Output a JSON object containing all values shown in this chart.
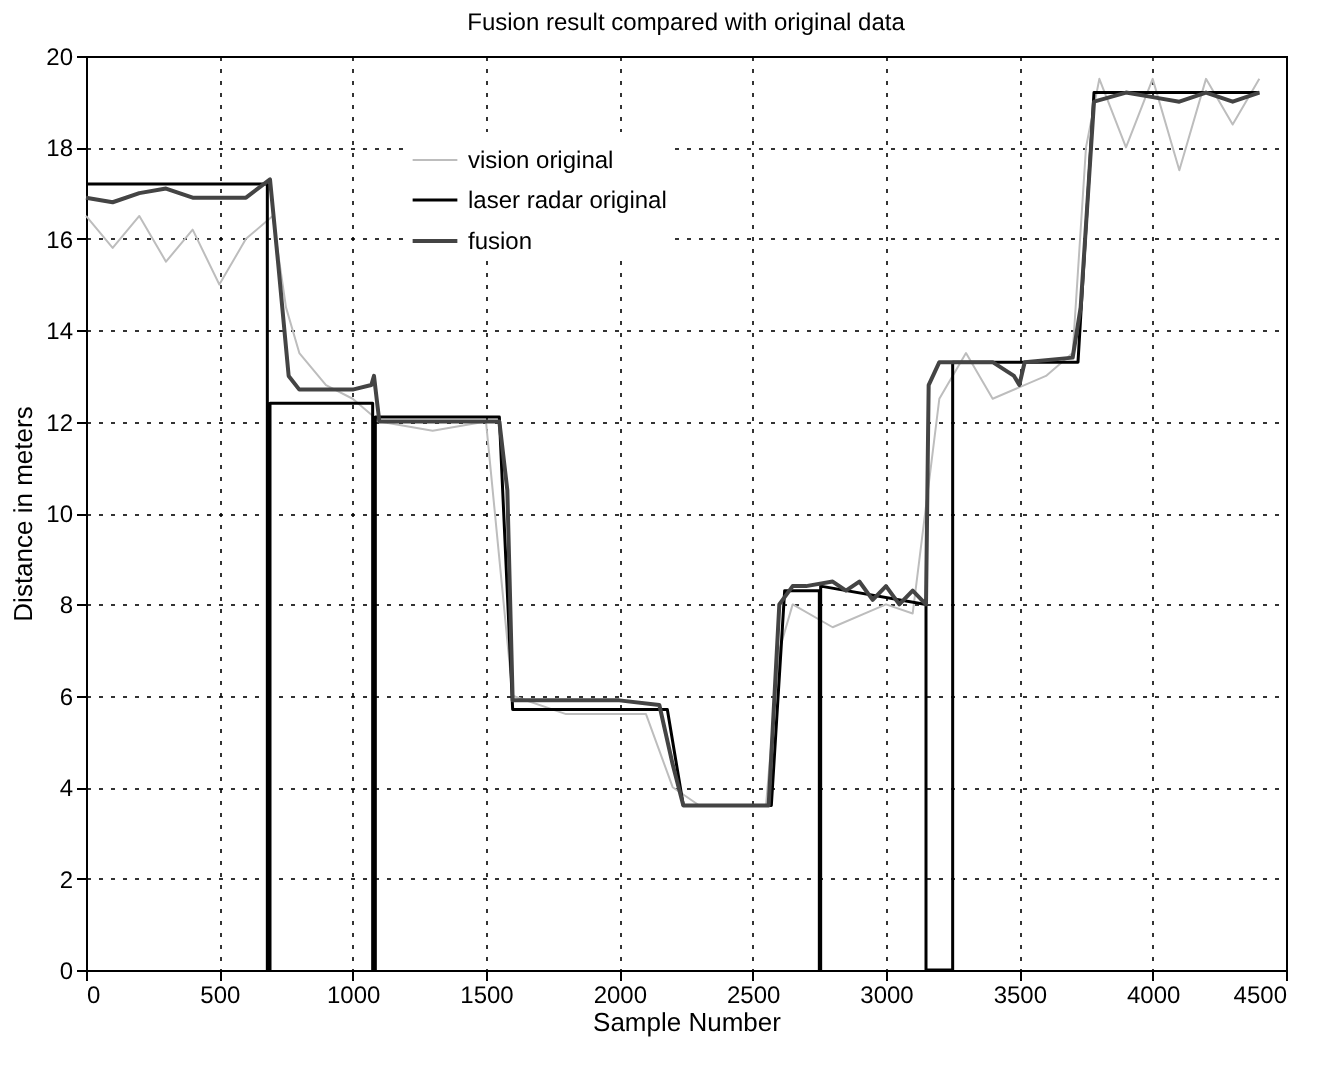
{
  "chart_data": {
    "type": "line",
    "title": "Fusion result compared with original data",
    "xlabel": "Sample Number",
    "ylabel": "Distance in meters",
    "xlim": [
      0,
      4500
    ],
    "xticks": [
      0,
      500,
      1000,
      1500,
      2000,
      2500,
      3000,
      3500,
      4000,
      4500
    ],
    "ylim": [
      0,
      20
    ],
    "yticks": [
      0,
      2,
      4,
      6,
      8,
      10,
      12,
      14,
      16,
      18,
      20
    ],
    "grid": true,
    "legend": "top",
    "line_style": "solid",
    "marker": "none",
    "series": [
      {
        "name": "vision original",
        "color": "#bdbdbd",
        "x": [
          0,
          100,
          200,
          300,
          400,
          500,
          600,
          700,
          750,
          800,
          900,
          1000,
          1100,
          1300,
          1500,
          1600,
          1800,
          2100,
          2200,
          2300,
          2550,
          2600,
          2650,
          2800,
          3000,
          3100,
          3200,
          3300,
          3400,
          3600,
          3700,
          3750,
          3800,
          3900,
          4000,
          4100,
          4200,
          4300,
          4400
        ],
        "values": [
          16.5,
          15.8,
          16.5,
          15.5,
          16.2,
          15.0,
          16.0,
          16.5,
          14.5,
          13.5,
          12.8,
          12.5,
          12.0,
          11.8,
          12.0,
          6.0,
          5.6,
          5.6,
          4.0,
          3.6,
          3.6,
          7.0,
          8.0,
          7.5,
          8.0,
          7.8,
          12.5,
          13.5,
          12.5,
          13.0,
          13.5,
          18.0,
          19.5,
          18.0,
          19.5,
          17.5,
          19.5,
          18.5,
          19.5
        ]
      },
      {
        "name": "laser radar original",
        "color": "#000000",
        "x": [
          0,
          680,
          680,
          690,
          690,
          1075,
          1075,
          1085,
          1085,
          1550,
          1600,
          2180,
          2240,
          2570,
          2620,
          2750,
          2750,
          2755,
          2755,
          3150,
          3150,
          3250,
          3250,
          3720,
          3780,
          4400
        ],
        "values": [
          17.2,
          17.2,
          0,
          0,
          12.4,
          12.4,
          0,
          0,
          12.1,
          12.1,
          5.7,
          5.7,
          3.6,
          3.6,
          8.3,
          8.3,
          0,
          0,
          8.4,
          8.0,
          0,
          0,
          13.3,
          13.3,
          19.2,
          19.2
        ]
      },
      {
        "name": "fusion",
        "color": "#444444",
        "x": [
          0,
          100,
          200,
          300,
          400,
          500,
          600,
          690,
          720,
          760,
          800,
          900,
          1000,
          1070,
          1080,
          1100,
          1200,
          1300,
          1400,
          1550,
          1580,
          1600,
          1800,
          2000,
          2150,
          2200,
          2240,
          2400,
          2560,
          2600,
          2650,
          2700,
          2800,
          2850,
          2900,
          2950,
          3000,
          3050,
          3100,
          3150,
          3160,
          3200,
          3300,
          3400,
          3480,
          3500,
          3520,
          3700,
          3730,
          3780,
          3900,
          4000,
          4100,
          4200,
          4300,
          4400
        ],
        "values": [
          16.9,
          16.8,
          17.0,
          17.1,
          16.9,
          16.9,
          16.9,
          17.3,
          15.5,
          13.0,
          12.7,
          12.7,
          12.7,
          12.8,
          13.0,
          12.0,
          12.0,
          12.0,
          12.0,
          12.0,
          10.5,
          5.9,
          5.9,
          5.9,
          5.8,
          4.5,
          3.6,
          3.6,
          3.6,
          8.0,
          8.4,
          8.4,
          8.5,
          8.3,
          8.5,
          8.1,
          8.4,
          8.0,
          8.3,
          8.0,
          12.8,
          13.3,
          13.3,
          13.3,
          13.0,
          12.8,
          13.3,
          13.4,
          14.5,
          19.0,
          19.2,
          19.1,
          19.0,
          19.2,
          19.0,
          19.2
        ]
      }
    ]
  }
}
